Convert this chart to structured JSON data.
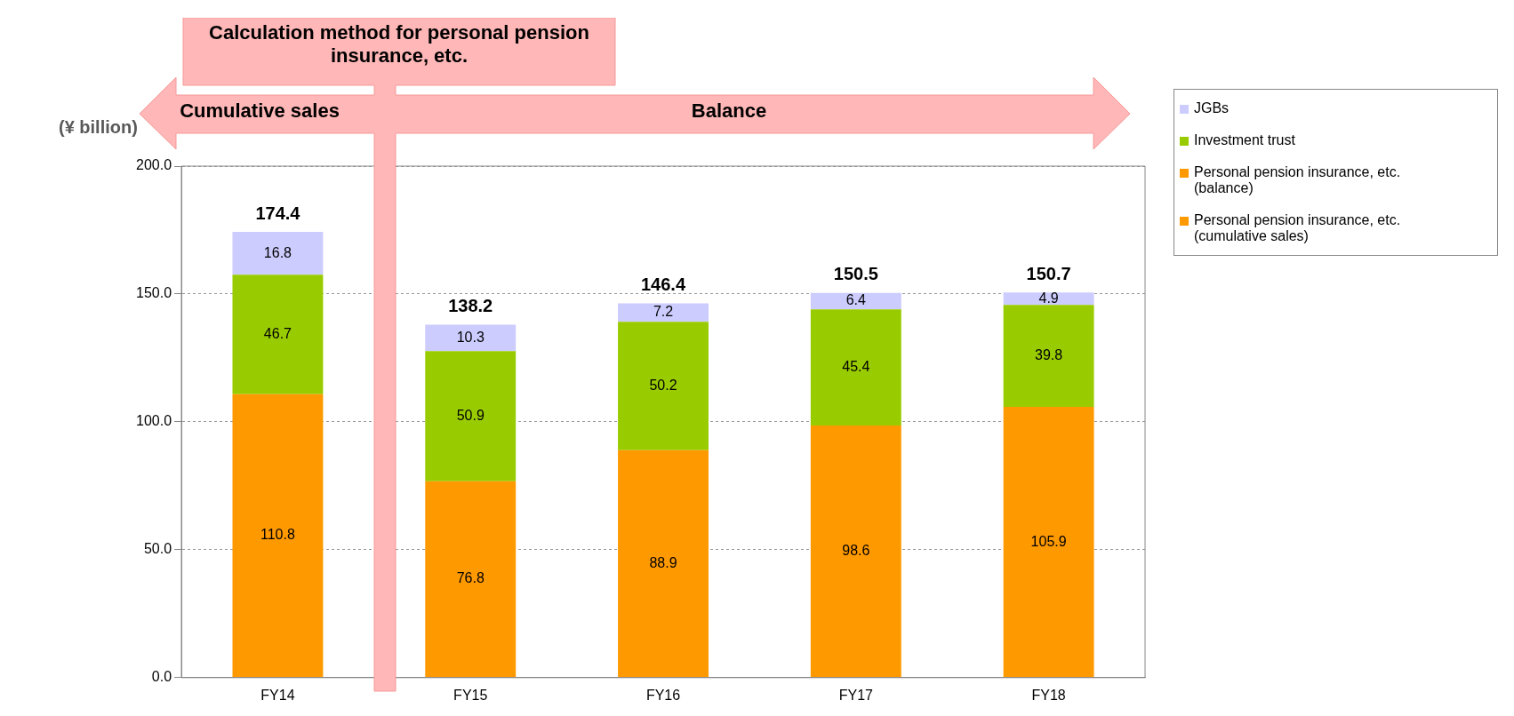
{
  "chart_data": {
    "type": "bar",
    "stacked": true,
    "ylabel": "(¥ billion)",
    "categories": [
      "FY14",
      "FY15",
      "FY16",
      "FY17",
      "FY18"
    ],
    "series": [
      {
        "name": "Personal pension insurance, etc. (cumulative sales)",
        "color": "#ff9900",
        "values": [
          110.8,
          null,
          null,
          null,
          null
        ]
      },
      {
        "name": "Personal pension insurance, etc. (balance)",
        "color": "#ff9900",
        "values": [
          null,
          76.8,
          88.9,
          98.6,
          105.9
        ]
      },
      {
        "name": "Investment trust",
        "color": "#99cc00",
        "values": [
          46.7,
          50.9,
          50.2,
          45.4,
          39.8
        ]
      },
      {
        "name": "JGBs",
        "color": "#ccccff",
        "values": [
          16.8,
          10.3,
          7.2,
          6.4,
          4.9
        ]
      }
    ],
    "ylim": [
      0,
      200
    ],
    "yticks": [
      {
        "value": 0,
        "label": "0.0"
      },
      {
        "value": 50,
        "label": "50.0"
      },
      {
        "value": 100,
        "label": "100.0"
      },
      {
        "value": 150,
        "label": "150.0"
      },
      {
        "value": 200,
        "label": "200.0"
      }
    ],
    "grid": "y",
    "legend": "top right",
    "data_labels": true,
    "totals": [
      "174.4",
      "138.2",
      "146.4",
      "150.5",
      "150.7"
    ],
    "annotations": [
      "Calculation method for personal pension insurance, etc.",
      "Cumulative sales",
      "Balance"
    ]
  }
}
